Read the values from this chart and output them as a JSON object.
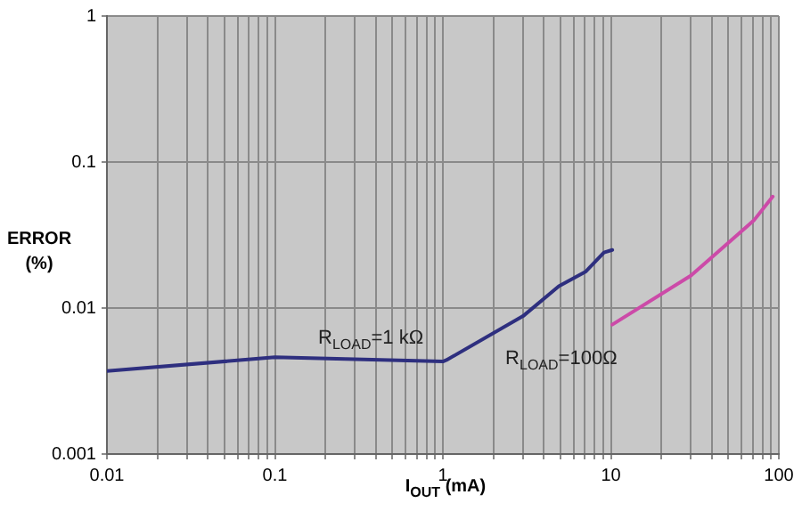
{
  "chart_data": {
    "type": "line",
    "xlabel": "I$_{OUT}$ (mA)",
    "ylabel": "ERROR (%)",
    "log": "xy",
    "grid": true,
    "legend": false,
    "marker": "none",
    "line_style": "solid",
    "xlim": [
      0.01,
      100
    ],
    "ylim": [
      0.001,
      1
    ],
    "xticks": [
      0.01,
      {
        "value": 0.02,
        "label": null
      },
      {
        "value": 0.03,
        "label": null
      },
      {
        "value": 0.04,
        "label": null
      },
      {
        "value": 0.05,
        "label": null
      },
      {
        "value": 0.06,
        "label": null
      },
      {
        "value": 0.07,
        "label": null
      },
      {
        "value": 0.08,
        "label": null
      },
      {
        "value": 0.09,
        "label": null
      },
      0.1,
      {
        "value": 0.2,
        "label": null
      },
      {
        "value": 0.3,
        "label": null
      },
      {
        "value": 0.4,
        "label": null
      },
      {
        "value": 0.5,
        "label": null
      },
      {
        "value": 0.6,
        "label": null
      },
      {
        "value": 0.7,
        "label": null
      },
      {
        "value": 0.8,
        "label": null
      },
      {
        "value": 0.9,
        "label": null
      },
      1,
      {
        "value": 2,
        "label": null
      },
      {
        "value": 3,
        "label": null
      },
      {
        "value": 4,
        "label": null
      },
      {
        "value": 5,
        "label": null
      },
      {
        "value": 6,
        "label": null
      },
      {
        "value": 7,
        "label": null
      },
      {
        "value": 8,
        "label": null
      },
      {
        "value": 9,
        "label": null
      },
      10,
      {
        "value": 20,
        "label": null
      },
      {
        "value": 30,
        "label": null
      },
      {
        "value": 40,
        "label": null
      },
      {
        "value": 50,
        "label": null
      },
      {
        "value": 60,
        "label": null
      },
      {
        "value": 70,
        "label": null
      },
      {
        "value": 80,
        "label": null
      },
      {
        "value": 90,
        "label": null
      },
      100
    ],
    "yticks": [
      0.001,
      0.01,
      0.1,
      1
    ],
    "series": [
      {
        "name": "R$_{LOAD}$=1 kΩ",
        "color": "#2e2f7f",
        "x": [
          0.01,
          0.1,
          1,
          1.05,
          3,
          4.9,
          7.1,
          9.1,
          10.2
        ],
        "values": [
          0.0037,
          0.0046,
          0.0043,
          0.0044,
          0.0088,
          0.0141,
          0.0178,
          0.024,
          0.025
        ]
      },
      {
        "name": "R$_{LOAD}$=100Ω",
        "color": "#cc4aa8",
        "x": [
          10.2,
          30,
          71,
          92
        ],
        "values": [
          0.0077,
          0.0167,
          0.0398,
          0.058
        ]
      }
    ]
  }
}
